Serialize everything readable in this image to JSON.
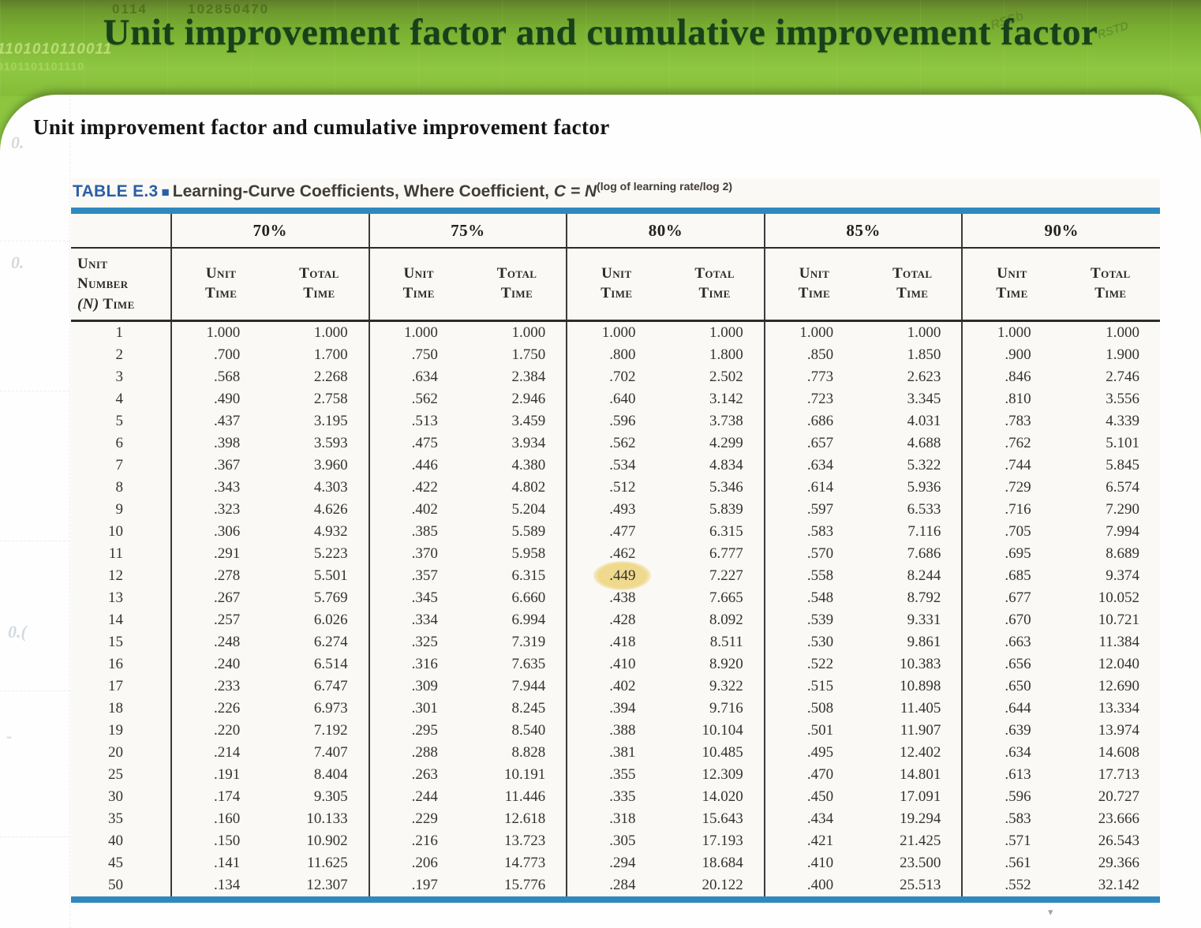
{
  "slide": {
    "banner_title": "Unit improvement factor and cumulative improvement factor",
    "heading": "Unit improvement factor and cumulative improvement factor"
  },
  "decorations": {
    "top_left_a": "0114",
    "top_left_b": "102850470",
    "left_binary_1": "1101010110011",
    "left_binary_2": "0101101101110",
    "right_scribble_1": "RSSb",
    "right_scribble_2": "RSTD",
    "watermark_1": "0.",
    "watermark_2": "0.",
    "watermark_3": "0.(",
    "watermark_4": "-",
    "cursor_mark": "▾"
  },
  "table": {
    "label": "TABLE E.3",
    "label_square": "■",
    "caption_main": "Learning-Curve Coefficients, Where Coefficient, ",
    "caption_var": "C = N",
    "caption_sup": "(log of learning rate/log 2)",
    "groups": [
      "70%",
      "75%",
      "80%",
      "85%",
      "90%"
    ],
    "row_header_line1": "Unit",
    "row_header_line2": "Number",
    "row_header_line3_var": "(N)",
    "row_header_line3_rest": " Time",
    "unit_time_label": "Unit\nTime",
    "total_time_label": "Total\nTime",
    "highlight": {
      "row_index": 11,
      "value_index": 4,
      "value": ".449"
    },
    "rows": [
      {
        "n": "1",
        "v": [
          "1.000",
          "1.000",
          "1.000",
          "1.000",
          "1.000",
          "1.000",
          "1.000",
          "1.000",
          "1.000",
          "1.000"
        ]
      },
      {
        "n": "2",
        "v": [
          ".700",
          "1.700",
          ".750",
          "1.750",
          ".800",
          "1.800",
          ".850",
          "1.850",
          ".900",
          "1.900"
        ]
      },
      {
        "n": "3",
        "v": [
          ".568",
          "2.268",
          ".634",
          "2.384",
          ".702",
          "2.502",
          ".773",
          "2.623",
          ".846",
          "2.746"
        ]
      },
      {
        "n": "4",
        "v": [
          ".490",
          "2.758",
          ".562",
          "2.946",
          ".640",
          "3.142",
          ".723",
          "3.345",
          ".810",
          "3.556"
        ]
      },
      {
        "n": "5",
        "v": [
          ".437",
          "3.195",
          ".513",
          "3.459",
          ".596",
          "3.738",
          ".686",
          "4.031",
          ".783",
          "4.339"
        ]
      },
      {
        "n": "6",
        "v": [
          ".398",
          "3.593",
          ".475",
          "3.934",
          ".562",
          "4.299",
          ".657",
          "4.688",
          ".762",
          "5.101"
        ]
      },
      {
        "n": "7",
        "v": [
          ".367",
          "3.960",
          ".446",
          "4.380",
          ".534",
          "4.834",
          ".634",
          "5.322",
          ".744",
          "5.845"
        ]
      },
      {
        "n": "8",
        "v": [
          ".343",
          "4.303",
          ".422",
          "4.802",
          ".512",
          "5.346",
          ".614",
          "5.936",
          ".729",
          "6.574"
        ]
      },
      {
        "n": "9",
        "v": [
          ".323",
          "4.626",
          ".402",
          "5.204",
          ".493",
          "5.839",
          ".597",
          "6.533",
          ".716",
          "7.290"
        ]
      },
      {
        "n": "10",
        "v": [
          ".306",
          "4.932",
          ".385",
          "5.589",
          ".477",
          "6.315",
          ".583",
          "7.116",
          ".705",
          "7.994"
        ]
      },
      {
        "n": "11",
        "v": [
          ".291",
          "5.223",
          ".370",
          "5.958",
          ".462",
          "6.777",
          ".570",
          "7.686",
          ".695",
          "8.689"
        ]
      },
      {
        "n": "12",
        "v": [
          ".278",
          "5.501",
          ".357",
          "6.315",
          ".449",
          "7.227",
          ".558",
          "8.244",
          ".685",
          "9.374"
        ]
      },
      {
        "n": "13",
        "v": [
          ".267",
          "5.769",
          ".345",
          "6.660",
          ".438",
          "7.665",
          ".548",
          "8.792",
          ".677",
          "10.052"
        ]
      },
      {
        "n": "14",
        "v": [
          ".257",
          "6.026",
          ".334",
          "6.994",
          ".428",
          "8.092",
          ".539",
          "9.331",
          ".670",
          "10.721"
        ]
      },
      {
        "n": "15",
        "v": [
          ".248",
          "6.274",
          ".325",
          "7.319",
          ".418",
          "8.511",
          ".530",
          "9.861",
          ".663",
          "11.384"
        ]
      },
      {
        "n": "16",
        "v": [
          ".240",
          "6.514",
          ".316",
          "7.635",
          ".410",
          "8.920",
          ".522",
          "10.383",
          ".656",
          "12.040"
        ]
      },
      {
        "n": "17",
        "v": [
          ".233",
          "6.747",
          ".309",
          "7.944",
          ".402",
          "9.322",
          ".515",
          "10.898",
          ".650",
          "12.690"
        ]
      },
      {
        "n": "18",
        "v": [
          ".226",
          "6.973",
          ".301",
          "8.245",
          ".394",
          "9.716",
          ".508",
          "11.405",
          ".644",
          "13.334"
        ]
      },
      {
        "n": "19",
        "v": [
          ".220",
          "7.192",
          ".295",
          "8.540",
          ".388",
          "10.104",
          ".501",
          "11.907",
          ".639",
          "13.974"
        ]
      },
      {
        "n": "20",
        "v": [
          ".214",
          "7.407",
          ".288",
          "8.828",
          ".381",
          "10.485",
          ".495",
          "12.402",
          ".634",
          "14.608"
        ]
      },
      {
        "n": "25",
        "v": [
          ".191",
          "8.404",
          ".263",
          "10.191",
          ".355",
          "12.309",
          ".470",
          "14.801",
          ".613",
          "17.713"
        ]
      },
      {
        "n": "30",
        "v": [
          ".174",
          "9.305",
          ".244",
          "11.446",
          ".335",
          "14.020",
          ".450",
          "17.091",
          ".596",
          "20.727"
        ]
      },
      {
        "n": "35",
        "v": [
          ".160",
          "10.133",
          ".229",
          "12.618",
          ".318",
          "15.643",
          ".434",
          "19.294",
          ".583",
          "23.666"
        ]
      },
      {
        "n": "40",
        "v": [
          ".150",
          "10.902",
          ".216",
          "13.723",
          ".305",
          "17.193",
          ".421",
          "21.425",
          ".571",
          "26.543"
        ]
      },
      {
        "n": "45",
        "v": [
          ".141",
          "11.625",
          ".206",
          "14.773",
          ".294",
          "18.684",
          ".410",
          "23.500",
          ".561",
          "29.366"
        ]
      },
      {
        "n": "50",
        "v": [
          ".134",
          "12.307",
          ".197",
          "15.776",
          ".284",
          "20.122",
          ".400",
          "25.513",
          ".552",
          "32.142"
        ]
      }
    ]
  },
  "colors": {
    "banner_green": "#8cc63f",
    "title_green": "#16411a",
    "rule_blue": "#3089be",
    "label_blue": "#2a5fa8",
    "highlight_yellow": "#eed98c"
  }
}
